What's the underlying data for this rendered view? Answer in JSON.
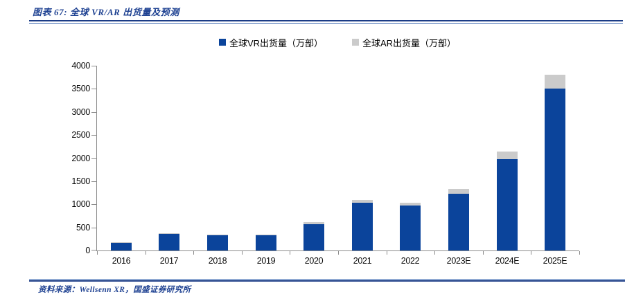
{
  "header": {
    "title": "图表 67: 全球 VR/AR 出货量及预测"
  },
  "legend": {
    "items": [
      {
        "label": "全球VR出货量（万部）",
        "color": "#0b449b"
      },
      {
        "label": "全球AR出货量（万部）",
        "color": "#cbcbcb"
      }
    ]
  },
  "footer": {
    "source": "资料来源：Wellsenn XR，国盛证券研究所"
  },
  "colors": {
    "accent_navy": "#1b3c86",
    "title_text": "#1f4292",
    "vr_bar": "#0b449b",
    "ar_bar": "#cbcbcb",
    "axis": "#8a8a8a"
  },
  "chart_data": {
    "type": "bar",
    "stacked": true,
    "title": "全球 VR/AR 出货量及预测",
    "categories": [
      "2016",
      "2017",
      "2018",
      "2019",
      "2020",
      "2021",
      "2022",
      "2023E",
      "2024E",
      "2025E"
    ],
    "series": [
      {
        "name": "全球VR出货量（万部）",
        "color": "#0b449b",
        "values": [
          160,
          355,
          330,
          335,
          570,
          1030,
          980,
          1230,
          1980,
          3500
        ]
      },
      {
        "name": "全球AR出货量（万部）",
        "color": "#cbcbcb",
        "values": [
          10,
          15,
          10,
          10,
          50,
          55,
          55,
          110,
          170,
          300
        ]
      }
    ],
    "xlabel": "",
    "ylabel": "",
    "unit": "万部",
    "ylim": [
      0,
      4000
    ],
    "yticks": [
      0,
      500,
      1000,
      1500,
      2000,
      2500,
      3000,
      3500,
      4000
    ],
    "grid": false,
    "legend_position": "top"
  }
}
